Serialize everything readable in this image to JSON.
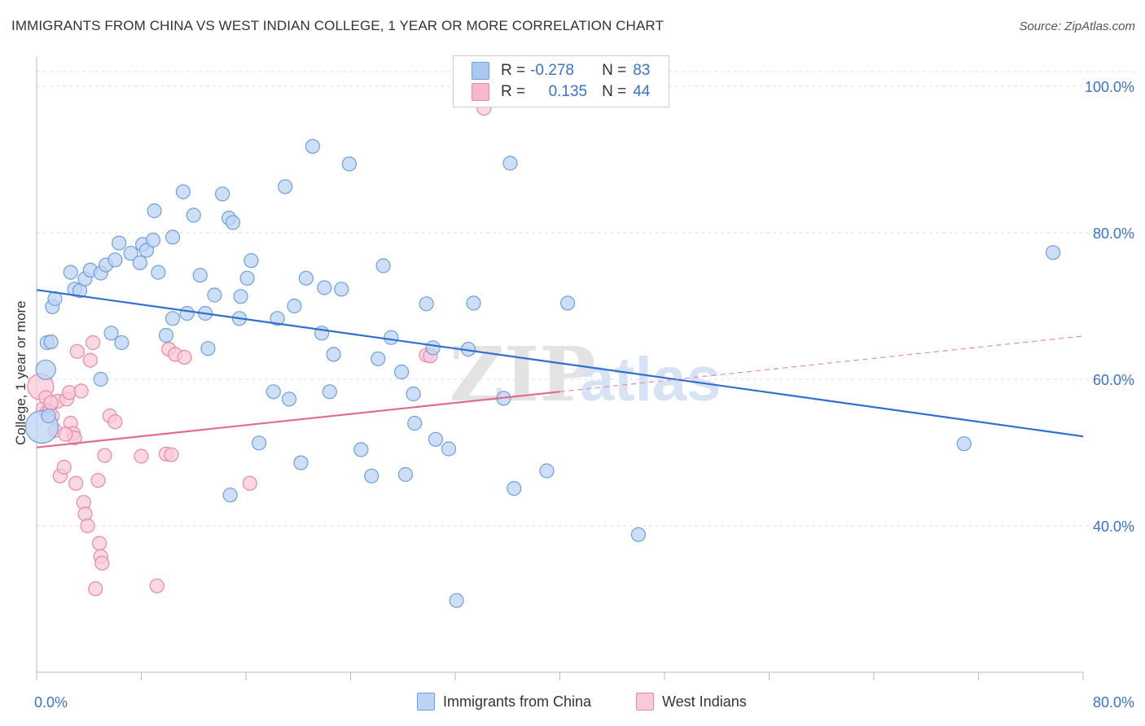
{
  "header": {
    "title": "IMMIGRANTS FROM CHINA VS WEST INDIAN COLLEGE, 1 YEAR OR MORE CORRELATION CHART",
    "source": "Source: ZipAtlas.com"
  },
  "watermark": {
    "zip": "ZIP",
    "atlas": "atlas"
  },
  "legend": {
    "rows": [
      {
        "r_label": "R =",
        "r_value": "-0.278",
        "n_label": "N =",
        "n_value": "83",
        "color": "#a9c8f0",
        "border": "#6f9fd8"
      },
      {
        "r_label": "R =",
        "r_value": "0.135",
        "n_label": "N =",
        "n_value": "44",
        "color": "#f7b8cb",
        "border": "#e58aa8"
      }
    ]
  },
  "bottom_legend": [
    {
      "label": "Immigrants from China",
      "color": "#bcd4f3",
      "border": "#6f9fd8"
    },
    {
      "label": "West Indians",
      "color": "#f9c9d7",
      "border": "#e58aa8"
    }
  ],
  "chart_data": {
    "type": "scatter",
    "title": "IMMIGRANTS FROM CHINA VS WEST INDIAN COLLEGE, 1 YEAR OR MORE CORRELATION CHART",
    "xlabel": "",
    "ylabel": "College, 1 year or more",
    "xlim": [
      0,
      80
    ],
    "ylim": [
      20,
      104
    ],
    "x_tick_labels": [
      "0.0%",
      "80.0%"
    ],
    "y_tick_labels": [
      "40.0%",
      "60.0%",
      "80.0%",
      "100.0%"
    ],
    "y_ticks": [
      40,
      60,
      80,
      100
    ],
    "grid": "horizontal dashed",
    "legend_position": "top-center",
    "series": [
      {
        "name": "Immigrants from China",
        "color": "#6f9fd8",
        "fill": "#bcd4f3",
        "points": [
          [
            0.4,
            53.5
          ],
          [
            0.7,
            61.3
          ],
          [
            0.8,
            65.0
          ],
          [
            1.1,
            65.1
          ],
          [
            1.2,
            69.9
          ],
          [
            1.4,
            71.0
          ],
          [
            2.6,
            74.6
          ],
          [
            2.9,
            72.3
          ],
          [
            3.3,
            72.1
          ],
          [
            3.7,
            73.7
          ],
          [
            4.1,
            74.9
          ],
          [
            4.9,
            74.5
          ],
          [
            5.3,
            75.6
          ],
          [
            6.0,
            76.3
          ],
          [
            6.3,
            78.6
          ],
          [
            7.2,
            77.2
          ],
          [
            7.9,
            75.9
          ],
          [
            8.1,
            78.4
          ],
          [
            8.4,
            77.6
          ],
          [
            9.0,
            83.0
          ],
          [
            9.3,
            74.6
          ],
          [
            9.9,
            66.0
          ],
          [
            10.4,
            68.3
          ],
          [
            10.4,
            79.4
          ],
          [
            11.2,
            85.6
          ],
          [
            11.5,
            69.0
          ],
          [
            12.0,
            82.4
          ],
          [
            12.5,
            74.2
          ],
          [
            12.9,
            69.0
          ],
          [
            13.1,
            64.2
          ],
          [
            13.6,
            71.5
          ],
          [
            14.2,
            85.3
          ],
          [
            14.7,
            82.0
          ],
          [
            15.0,
            81.4
          ],
          [
            15.5,
            68.3
          ],
          [
            15.6,
            71.3
          ],
          [
            16.1,
            73.8
          ],
          [
            16.4,
            76.2
          ],
          [
            18.1,
            58.3
          ],
          [
            18.4,
            68.3
          ],
          [
            19.0,
            86.3
          ],
          [
            19.3,
            57.3
          ],
          [
            19.7,
            70.0
          ],
          [
            20.2,
            48.6
          ],
          [
            20.6,
            73.8
          ],
          [
            21.1,
            91.8
          ],
          [
            21.8,
            66.3
          ],
          [
            22.0,
            72.5
          ],
          [
            22.4,
            58.3
          ],
          [
            22.7,
            63.4
          ],
          [
            23.3,
            72.3
          ],
          [
            23.9,
            89.4
          ],
          [
            24.8,
            50.4
          ],
          [
            25.6,
            46.8
          ],
          [
            26.1,
            62.8
          ],
          [
            26.5,
            75.5
          ],
          [
            27.1,
            65.7
          ],
          [
            27.9,
            61.0
          ],
          [
            28.2,
            47.0
          ],
          [
            28.8,
            58.0
          ],
          [
            28.9,
            54.0
          ],
          [
            29.8,
            70.3
          ],
          [
            30.3,
            64.3
          ],
          [
            30.5,
            51.8
          ],
          [
            31.5,
            50.5
          ],
          [
            32.1,
            29.8
          ],
          [
            33.0,
            64.1
          ],
          [
            33.4,
            70.4
          ],
          [
            35.7,
            57.4
          ],
          [
            36.2,
            89.5
          ],
          [
            36.5,
            45.1
          ],
          [
            39.0,
            47.5
          ],
          [
            40.6,
            70.4
          ],
          [
            46.0,
            38.8
          ],
          [
            70.9,
            51.2
          ],
          [
            77.7,
            77.3
          ],
          [
            14.8,
            44.2
          ],
          [
            17.0,
            51.3
          ],
          [
            8.9,
            79.0
          ],
          [
            4.9,
            60.0
          ],
          [
            5.7,
            66.3
          ],
          [
            6.5,
            65.0
          ],
          [
            0.9,
            55.0
          ]
        ],
        "trend": {
          "x": [
            0,
            80
          ],
          "y": [
            72.2,
            52.2
          ]
        }
      },
      {
        "name": "West Indians",
        "color": "#e58aa8",
        "fill": "#f9c9d7",
        "points": [
          [
            0.3,
            59.0
          ],
          [
            0.5,
            56.0
          ],
          [
            0.7,
            57.5
          ],
          [
            0.8,
            55.5
          ],
          [
            1.0,
            55.6
          ],
          [
            1.2,
            55.0
          ],
          [
            1.4,
            53.0
          ],
          [
            1.6,
            57.0
          ],
          [
            1.8,
            46.8
          ],
          [
            2.1,
            48.0
          ],
          [
            2.3,
            57.3
          ],
          [
            2.5,
            58.2
          ],
          [
            2.6,
            54.0
          ],
          [
            2.8,
            52.6
          ],
          [
            2.9,
            52.0
          ],
          [
            3.0,
            45.8
          ],
          [
            3.1,
            63.8
          ],
          [
            3.4,
            58.4
          ],
          [
            3.6,
            43.2
          ],
          [
            3.7,
            41.6
          ],
          [
            3.9,
            40.0
          ],
          [
            4.1,
            62.6
          ],
          [
            4.3,
            65.0
          ],
          [
            4.5,
            31.4
          ],
          [
            4.7,
            46.2
          ],
          [
            4.8,
            37.6
          ],
          [
            4.9,
            35.8
          ],
          [
            5.0,
            34.9
          ],
          [
            5.2,
            49.6
          ],
          [
            5.6,
            55.0
          ],
          [
            6.0,
            54.2
          ],
          [
            8.0,
            49.5
          ],
          [
            9.2,
            31.8
          ],
          [
            9.9,
            49.8
          ],
          [
            10.3,
            49.7
          ],
          [
            10.1,
            64.1
          ],
          [
            10.6,
            63.4
          ],
          [
            11.3,
            63.0
          ],
          [
            16.3,
            45.8
          ],
          [
            29.8,
            63.3
          ],
          [
            30.1,
            63.2
          ],
          [
            34.2,
            97.0
          ],
          [
            1.1,
            56.8
          ],
          [
            2.2,
            52.5
          ]
        ],
        "trend": {
          "x": [
            0,
            40
          ],
          "y": [
            50.7,
            58.3
          ]
        },
        "trend_extension": {
          "x": [
            40,
            80
          ],
          "y": [
            58.3,
            65.9
          ]
        }
      }
    ]
  }
}
